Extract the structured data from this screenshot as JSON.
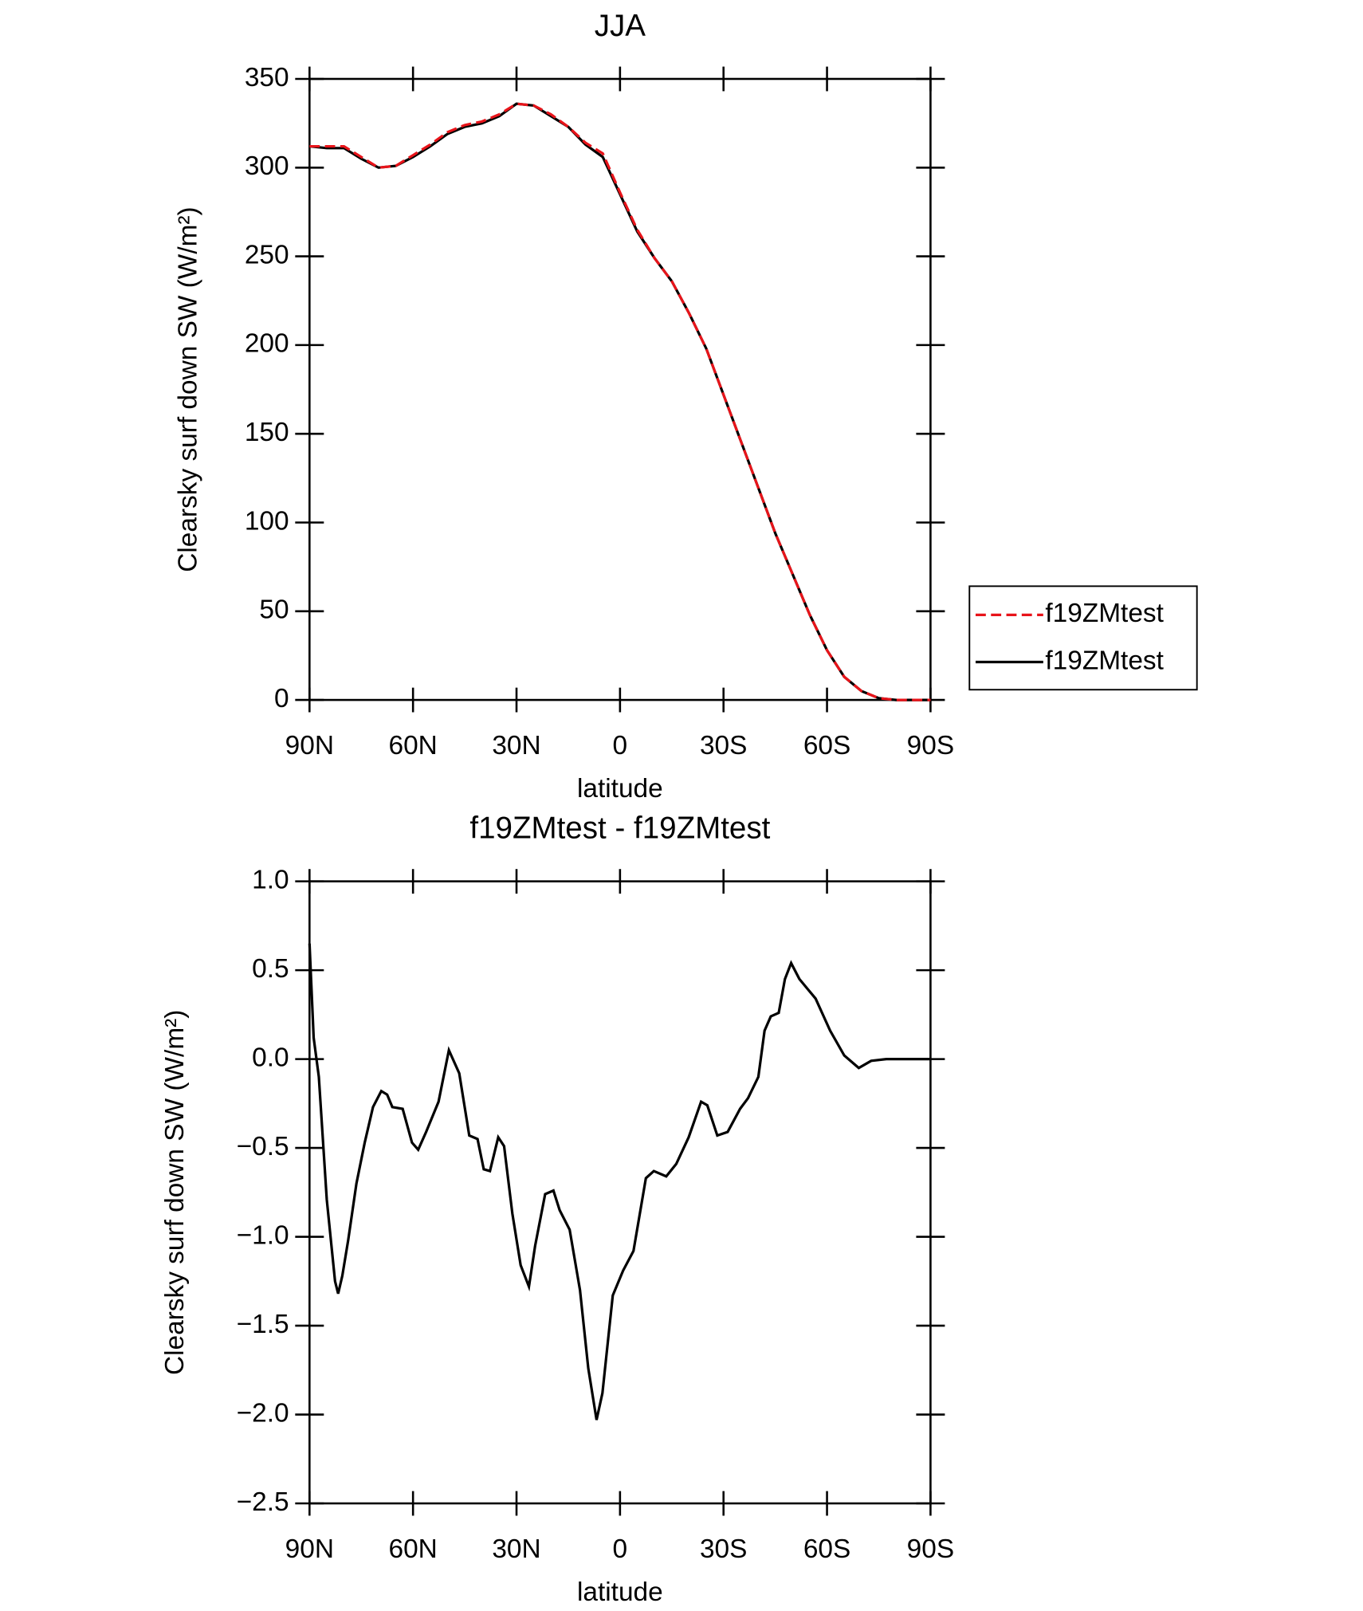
{
  "chart_data": [
    {
      "type": "line",
      "title": "JJA",
      "xlabel": "latitude",
      "ylabel": "Clearsky surf down SW (W/m²)",
      "x": [
        90,
        85,
        80,
        75,
        70,
        65,
        60,
        55,
        50,
        45,
        40,
        35,
        30,
        25,
        20,
        15,
        10,
        5,
        0,
        -5,
        -10,
        -15,
        -20,
        -25,
        -30,
        -35,
        -40,
        -45,
        -50,
        -55,
        -60,
        -65,
        -70,
        -75,
        -80,
        -85,
        -90
      ],
      "series": [
        {
          "name": "f19ZMtest",
          "color": "#e8141a",
          "dash": true,
          "values": [
            312,
            312,
            312,
            306,
            300,
            301,
            307,
            313,
            320,
            324,
            326,
            330,
            336,
            335,
            330,
            323,
            314,
            308,
            286,
            265,
            249,
            236,
            218,
            198,
            172,
            146,
            120,
            94,
            71,
            48,
            28,
            13,
            5,
            1,
            0,
            0,
            0
          ]
        },
        {
          "name": "f19ZMtest",
          "color": "#000000",
          "dash": false,
          "values": [
            312,
            311,
            311,
            305,
            300,
            301,
            306,
            312,
            319,
            323,
            325,
            329,
            336,
            335,
            329,
            323,
            313,
            306,
            285,
            264,
            249,
            236,
            218,
            198,
            172,
            146,
            120,
            94,
            71,
            48,
            28,
            13,
            5,
            1,
            0,
            0,
            0
          ]
        }
      ],
      "xlim": [
        90,
        -90
      ],
      "xticks": [
        {
          "value": 90,
          "label": "90N"
        },
        {
          "value": 60,
          "label": "60N"
        },
        {
          "value": 30,
          "label": "30N"
        },
        0,
        {
          "value": -30,
          "label": "30S"
        },
        {
          "value": -60,
          "label": "60S"
        },
        {
          "value": -90,
          "label": "90S"
        }
      ],
      "ylim": [
        0,
        350
      ],
      "yticks": [
        0,
        50,
        100,
        150,
        200,
        250,
        300,
        350
      ],
      "legend": "right"
    },
    {
      "type": "line",
      "title": "f19ZMtest - f19ZMtest",
      "xlabel": "latitude",
      "ylabel": "Clearsky surf down SW (W/m²)",
      "x": [
        90,
        88.8,
        87.3,
        85,
        82.6,
        81.7,
        80.5,
        78.8,
        76.4,
        74,
        71.6,
        69.2,
        67.5,
        66,
        63,
        60.3,
        58.5,
        56.2,
        52.6,
        49.6,
        46.6,
        43.7,
        41.3,
        39.5,
        37.7,
        35.3,
        33.6,
        31.2,
        28.8,
        26.4,
        24.6,
        21.7,
        19.3,
        17.5,
        14.6,
        11.6,
        9.2,
        6.8,
        5.1,
        2.1,
        -0.9,
        -3.9,
        -7.5,
        -9.8,
        -13.4,
        -16.3,
        -19.9,
        -23.5,
        -25.3,
        -28.2,
        -31.2,
        -34.8,
        -37.1,
        -40.1,
        -41.9,
        -43.7,
        -46,
        -47.8,
        -49.6,
        -52,
        -56.7,
        -60.9,
        -65,
        -69.2,
        -72.8,
        -77.2,
        -90
      ],
      "values": [
        0.65,
        0.12,
        -0.1,
        -0.79,
        -1.25,
        -1.32,
        -1.22,
        -1.02,
        -0.7,
        -0.47,
        -0.27,
        -0.18,
        -0.2,
        -0.27,
        -0.28,
        -0.47,
        -0.51,
        -0.41,
        -0.24,
        0.05,
        -0.08,
        -0.43,
        -0.45,
        -0.62,
        -0.63,
        -0.44,
        -0.49,
        -0.87,
        -1.16,
        -1.28,
        -1.05,
        -0.76,
        -0.74,
        -0.85,
        -0.96,
        -1.3,
        -1.74,
        -2.03,
        -1.88,
        -1.33,
        -1.19,
        -1.08,
        -0.67,
        -0.63,
        -0.66,
        -0.59,
        -0.44,
        -0.24,
        -0.26,
        -0.43,
        -0.41,
        -0.28,
        -0.22,
        -0.1,
        0.16,
        0.24,
        0.26,
        0.45,
        0.54,
        0.45,
        0.34,
        0.16,
        0.02,
        -0.05,
        -0.01,
        0,
        0
      ],
      "color": "#000000",
      "xlim": [
        90,
        -90
      ],
      "xticks": [
        {
          "value": 90,
          "label": "90N"
        },
        {
          "value": 60,
          "label": "60N"
        },
        {
          "value": 30,
          "label": "30N"
        },
        0,
        {
          "value": -30,
          "label": "30S"
        },
        {
          "value": -60,
          "label": "60S"
        },
        {
          "value": -90,
          "label": "90S"
        }
      ],
      "ylim": [
        -2.5,
        1
      ],
      "yticks": [
        {
          "value": 1,
          "label": "1.0"
        },
        {
          "value": 0.5,
          "label": "0.5"
        },
        {
          "value": 0,
          "label": "0.0"
        },
        {
          "value": -0.5,
          "label": "−0.5"
        },
        {
          "value": -1,
          "label": "−1.0"
        },
        {
          "value": -1.5,
          "label": "−1.5"
        },
        {
          "value": -2,
          "label": "−2.0"
        },
        {
          "value": -2.5,
          "label": "−2.5"
        }
      ]
    }
  ]
}
